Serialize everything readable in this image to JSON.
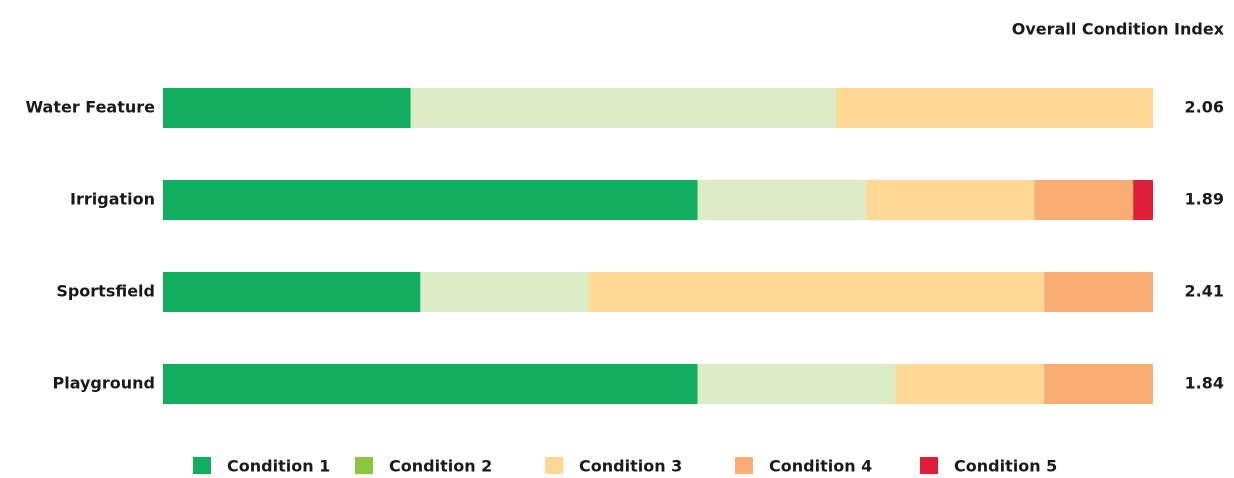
{
  "chart_data": {
    "type": "stacked_bar_h",
    "value_title": "Overall Condition Index",
    "categories": [
      "Water Feature",
      "Irrigation",
      "Sportsfield",
      "Playground"
    ],
    "index_values": [
      2.06,
      1.89,
      2.41,
      1.84
    ],
    "xlim": [
      0,
      100
    ],
    "series": [
      {
        "name": "Condition 1",
        "color": "#12ad5f",
        "legend_color": "#12ad5f",
        "values": [
          25,
          54,
          26,
          54
        ]
      },
      {
        "name": "Condition 2",
        "color": "#dcecc6",
        "legend_color": "#8cc63f",
        "values": [
          43,
          17,
          17,
          20
        ]
      },
      {
        "name": "Condition 3",
        "color": "#fed894",
        "legend_color": "#fed894",
        "values": [
          32,
          17,
          46,
          15
        ]
      },
      {
        "name": "Condition 4",
        "color": "#f9ad72",
        "legend_color": "#f9ad72",
        "values": [
          0,
          10,
          11,
          11
        ]
      },
      {
        "name": "Condition 5",
        "color": "#e01e37",
        "legend_color": "#e01e37",
        "values": [
          0,
          2,
          0,
          0
        ]
      }
    ]
  }
}
